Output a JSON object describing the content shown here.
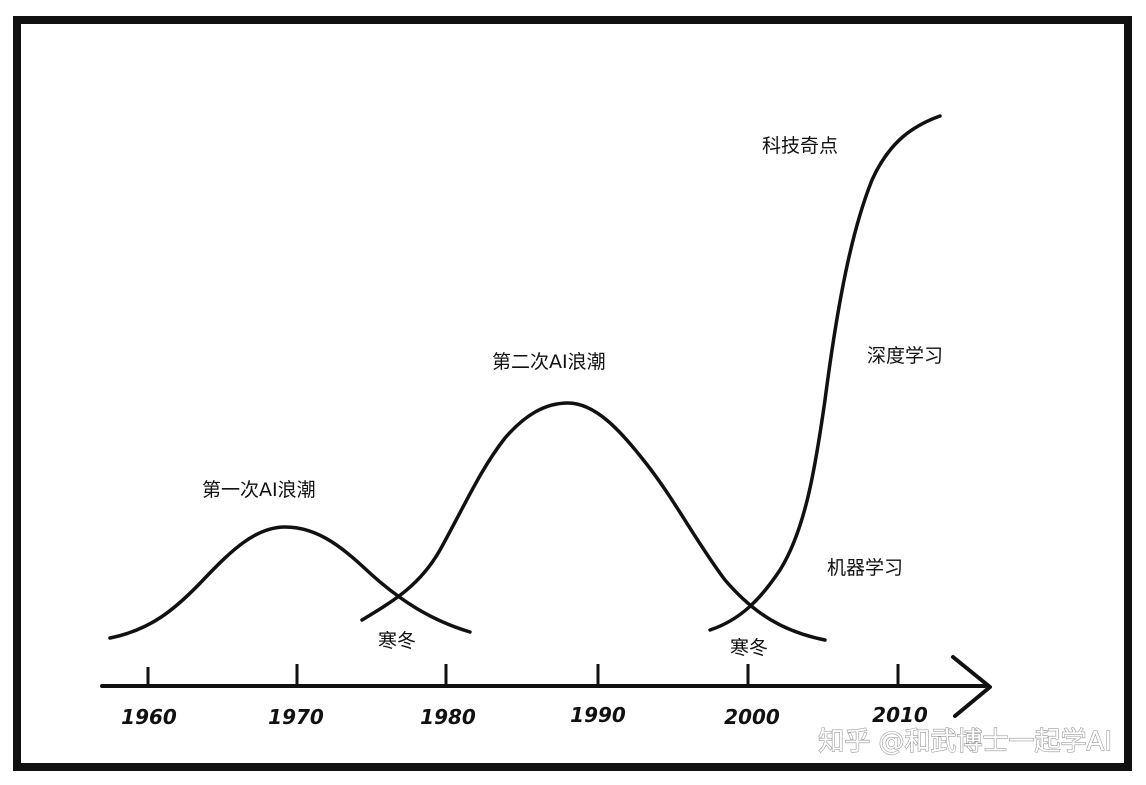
{
  "diagram": {
    "waves": [
      {
        "label": "第一次AI浪潮"
      },
      {
        "label": "第二次AI浪潮"
      }
    ],
    "winters": [
      {
        "label": "寒冬"
      },
      {
        "label": "寒冬"
      }
    ],
    "stages": [
      {
        "label": "科技奇点"
      },
      {
        "label": "深度学习"
      },
      {
        "label": "机器学习"
      }
    ],
    "axis": {
      "ticks": [
        "1960",
        "1970",
        "1980",
        "1990",
        "2000",
        "2010"
      ]
    },
    "watermark": "知乎 @和武博士一起学AI"
  },
  "colors": {
    "ink": "#111111",
    "frame": "#111111",
    "background": "#ffffff",
    "watermark_outline": "#9a9a9a"
  }
}
